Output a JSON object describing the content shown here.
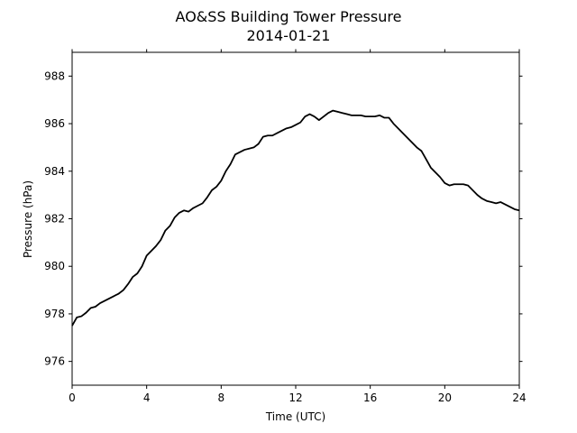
{
  "chart_data": {
    "type": "line",
    "title": "AO&SS Building Tower Pressure",
    "subtitle": "2014-01-21",
    "xlabel": "Time (UTC)",
    "ylabel": "Pressure (hPa)",
    "xlim": [
      0,
      24
    ],
    "ylim": [
      975,
      989
    ],
    "xticks": [
      0,
      4,
      8,
      12,
      16,
      20,
      24
    ],
    "xtick_labels": [
      "0",
      "4",
      "8",
      "12",
      "16",
      "20",
      "24"
    ],
    "yticks": [
      976,
      978,
      980,
      982,
      984,
      986,
      988
    ],
    "ytick_labels": [
      "976",
      "978",
      "980",
      "982",
      "984",
      "986",
      "988"
    ],
    "grid": false,
    "line_color": "#000000",
    "series": [
      {
        "x": [
          0,
          0.25,
          0.5,
          0.75,
          1,
          1.25,
          1.5,
          1.75,
          2,
          2.25,
          2.5,
          2.75,
          3,
          3.25,
          3.5,
          3.75,
          4,
          4.25,
          4.5,
          4.75,
          5,
          5.25,
          5.5,
          5.75,
          6,
          6.25,
          6.5,
          6.75,
          7,
          7.25,
          7.5,
          7.75,
          8,
          8.25,
          8.5,
          8.75,
          9,
          9.25,
          9.5,
          9.75,
          10,
          10.25,
          10.5,
          10.75,
          11,
          11.25,
          11.5,
          11.75,
          12,
          12.25,
          12.5,
          12.75,
          13,
          13.25,
          13.5,
          13.75,
          14,
          14.25,
          14.5,
          14.75,
          15,
          15.25,
          15.5,
          15.75,
          16,
          16.25,
          16.5,
          16.75,
          17,
          17.25,
          17.5,
          17.75,
          18,
          18.25,
          18.5,
          18.75,
          19,
          19.25,
          19.5,
          19.75,
          20,
          20.25,
          20.5,
          20.75,
          21,
          21.25,
          21.5,
          21.75,
          22,
          22.25,
          22.5,
          22.75,
          23,
          23.25,
          23.5,
          23.75,
          24
        ],
        "values": [
          977.5,
          977.85,
          977.9,
          978.05,
          978.25,
          978.3,
          978.45,
          978.55,
          978.65,
          978.75,
          978.85,
          979.0,
          979.25,
          979.55,
          979.7,
          980.0,
          980.45,
          980.65,
          980.85,
          981.1,
          981.5,
          981.7,
          982.05,
          982.25,
          982.35,
          982.3,
          982.45,
          982.55,
          982.65,
          982.9,
          983.2,
          983.35,
          983.6,
          984.0,
          984.3,
          984.7,
          984.8,
          984.9,
          984.95,
          985.0,
          985.15,
          985.45,
          985.5,
          985.5,
          985.6,
          985.7,
          985.8,
          985.85,
          985.95,
          986.05,
          986.3,
          986.4,
          986.3,
          986.15,
          986.3,
          986.45,
          986.55,
          986.5,
          986.45,
          986.4,
          986.35,
          986.35,
          986.35,
          986.3,
          986.3,
          986.3,
          986.35,
          986.25,
          986.25,
          986.0,
          985.8,
          985.6,
          985.4,
          985.2,
          985.0,
          984.85,
          984.5,
          984.15,
          983.95,
          983.75,
          983.5,
          983.4,
          983.45,
          983.45,
          983.45,
          983.4,
          983.2,
          983.0,
          982.85,
          982.75,
          982.7,
          982.65,
          982.7,
          982.6,
          982.5,
          982.4,
          982.35
        ]
      }
    ]
  }
}
